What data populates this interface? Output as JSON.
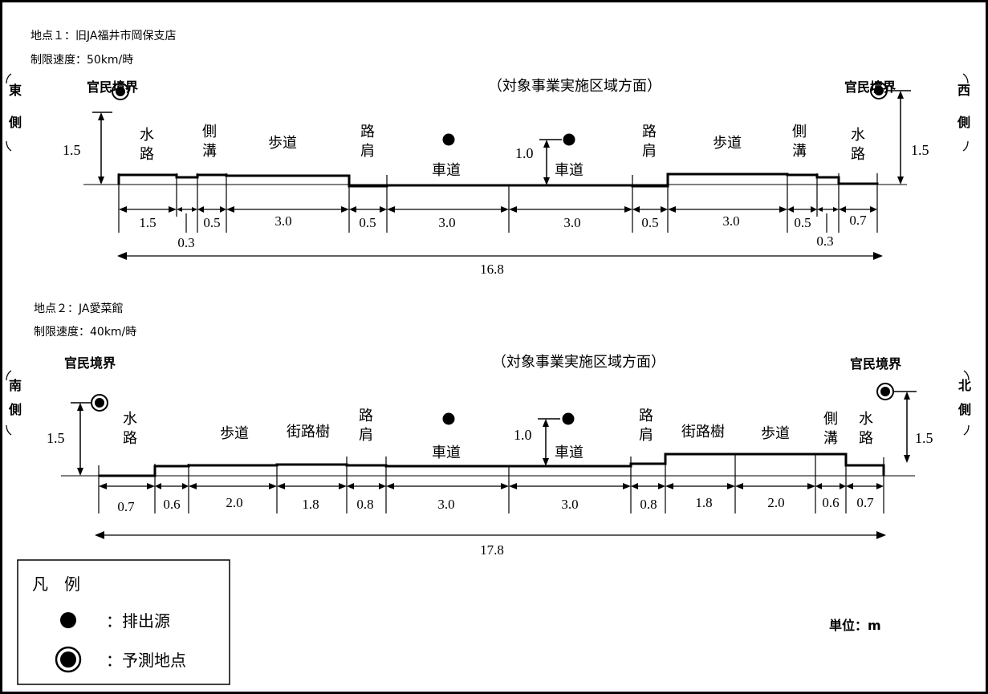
{
  "section1": {
    "location": "地点１：旧JA福井市岡保支店",
    "speed_limit": "制限速度：50km/時",
    "direction": "（対象事業実施区域方面）",
    "left_boundary": "官民境界",
    "right_boundary": "官民境界",
    "left_side": [
      "東",
      "側"
    ],
    "right_side": [
      "西",
      "側"
    ],
    "left_height": "1.5",
    "right_height": "1.5",
    "source_height": "1.0",
    "segments": [
      {
        "name": [
          "水",
          "路"
        ],
        "dim": "1.5"
      },
      {
        "name": [],
        "dim": "0.3"
      },
      {
        "name": [
          "側",
          "溝"
        ],
        "dim": "0.5"
      },
      {
        "name": [
          "歩道"
        ],
        "dim": "3.0"
      },
      {
        "name": [
          "路",
          "肩"
        ],
        "dim": "0.5"
      },
      {
        "name": [
          "車道"
        ],
        "dim": "3.0"
      },
      {
        "name": [
          "車道"
        ],
        "dim": "3.0"
      },
      {
        "name": [
          "路",
          "肩"
        ],
        "dim": "0.5"
      },
      {
        "name": [
          "歩道"
        ],
        "dim": "3.0"
      },
      {
        "name": [
          "側",
          "溝"
        ],
        "dim": "0.5"
      },
      {
        "name": [],
        "dim": "0.3"
      },
      {
        "name": [
          "水",
          "路"
        ],
        "dim": "0.7"
      }
    ],
    "total": "16.8"
  },
  "section2": {
    "location": "地点２：JA愛菜館",
    "speed_limit": "制限速度：40km/時",
    "direction": "（対象事業実施区域方面）",
    "left_boundary": "官民境界",
    "right_boundary": "官民境界",
    "left_side": [
      "南",
      "側"
    ],
    "right_side": [
      "北",
      "側"
    ],
    "left_height": "1.5",
    "right_height": "1.5",
    "source_height": "1.0",
    "segments": [
      {
        "name": [
          "水",
          "路"
        ],
        "dim": "0.7"
      },
      {
        "name": [],
        "dim": "0.6"
      },
      {
        "name": [
          "歩道"
        ],
        "dim": "2.0"
      },
      {
        "name": [
          "街路樹"
        ],
        "dim": "1.8"
      },
      {
        "name": [
          "路",
          "肩"
        ],
        "dim": "0.8"
      },
      {
        "name": [
          "車道"
        ],
        "dim": "3.0"
      },
      {
        "name": [
          "車道"
        ],
        "dim": "3.0"
      },
      {
        "name": [
          "路",
          "肩"
        ],
        "dim": "0.8"
      },
      {
        "name": [
          "街路樹"
        ],
        "dim": "1.8"
      },
      {
        "name": [
          "歩道"
        ],
        "dim": "2.0"
      },
      {
        "name": [
          "側",
          "溝"
        ],
        "dim": "0.6"
      },
      {
        "name": [
          "水",
          "路"
        ],
        "dim": "0.7"
      }
    ],
    "total": "17.8"
  },
  "legend": {
    "title": "凡　例",
    "source_label": "：排出源",
    "receptor_label": "：予測地点"
  },
  "unit": "単位：m"
}
